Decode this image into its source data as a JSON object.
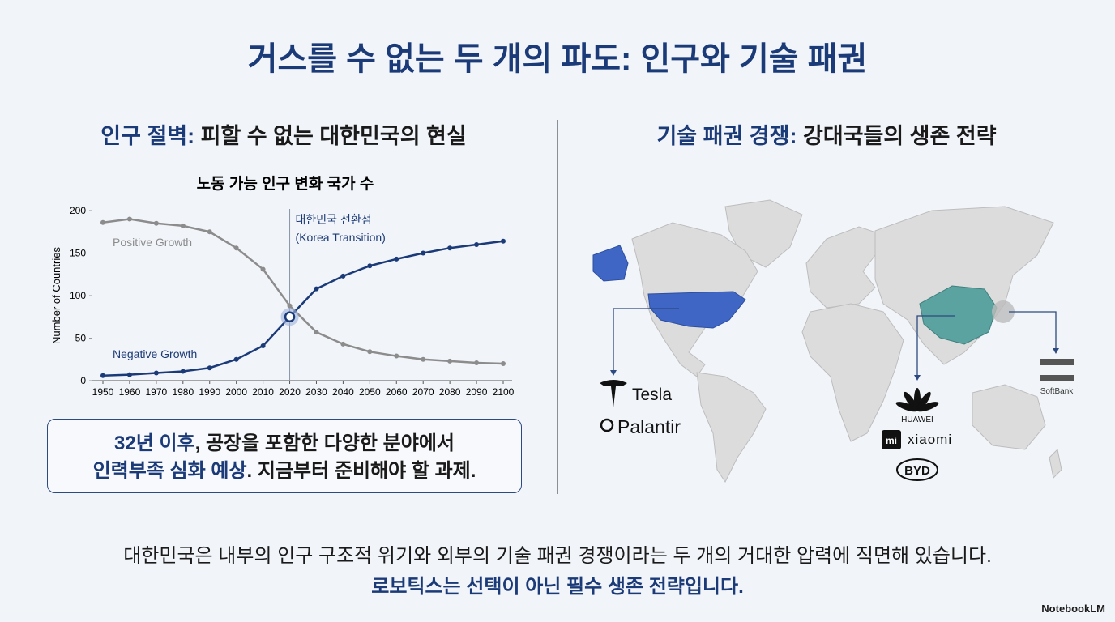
{
  "title": "거스를 수 없는 두 개의 파도: 인구와 기술 패권",
  "left_heading": {
    "emph": "인구 절벽:",
    "rest": " 피할 수 없는 대한민국의 현실"
  },
  "right_heading": {
    "emph": "기술 패권 경쟁:",
    "rest": " 강대국들의 생존 전략"
  },
  "chart_data": {
    "type": "line",
    "title": "노동 가능 인구 변화 국가 수",
    "y_label": "Number of Countries",
    "x": [
      1950,
      1960,
      1970,
      1980,
      1990,
      2000,
      2010,
      2020,
      2030,
      2040,
      2050,
      2060,
      2070,
      2080,
      2090,
      2100
    ],
    "xlim": [
      1950,
      2100
    ],
    "xticks": [
      1950,
      1960,
      1970,
      1980,
      1990,
      2000,
      2010,
      2020,
      2030,
      2040,
      2050,
      2060,
      2070,
      2080,
      2090,
      2100
    ],
    "ylim": [
      0,
      200
    ],
    "yticks": [
      0,
      50,
      100,
      150,
      200
    ],
    "series": [
      {
        "name": "Positive Growth",
        "color": "#8c8c8c",
        "values": [
          186,
          190,
          185,
          182,
          175,
          156,
          131,
          88,
          57,
          43,
          34,
          29,
          25,
          23,
          21,
          20
        ]
      },
      {
        "name": "Negative Growth",
        "color": "#1b3a78",
        "values": [
          6,
          7,
          9,
          11,
          15,
          25,
          41,
          75,
          108,
          123,
          135,
          143,
          150,
          156,
          160,
          164
        ]
      }
    ],
    "transition": {
      "x": 2020,
      "y": 75,
      "label": [
        "대한민국 전환점",
        "(Korea Transition)"
      ]
    }
  },
  "callout": {
    "line1_emph": "32년 이후",
    "line1_rest": ", 공장을 포함한 다양한 분야에서",
    "line2_emph": "인력부족 심화 예상",
    "line2_rest": ". 지금부터 준비해야 할 과제."
  },
  "companies": {
    "us": [
      "Tesla",
      "Palantir"
    ],
    "china": [
      "HUAWEI",
      "xiaomi",
      "BYD"
    ],
    "china_icon": "mi",
    "japan": [
      "SoftBank"
    ]
  },
  "footer": {
    "line1": "대한민국은 내부의 인구 구조적 위기와 외부의 기술 패권 경쟁이라는 두 개의 거대한 압력에 직면해 있습니다.",
    "line2": "로보틱스는 선택이 아닌 필수 생존 전략입니다."
  },
  "brand": "NotebookLM"
}
